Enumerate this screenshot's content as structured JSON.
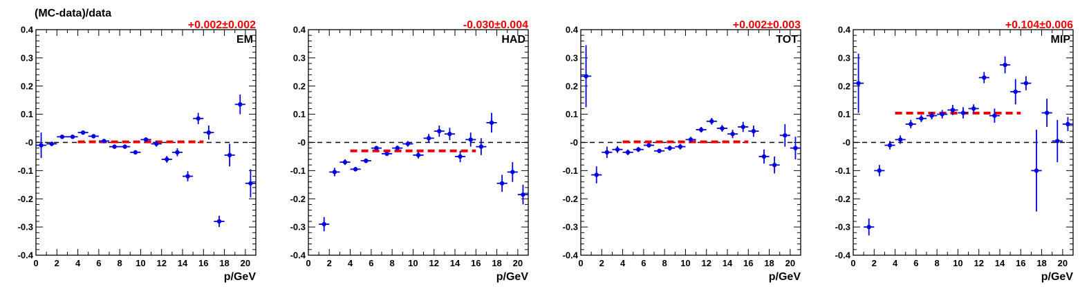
{
  "figure": {
    "ylabel": "(MC-data)/data",
    "xlabel": "p/GeV"
  },
  "colors": {
    "points": "#0000dd",
    "fit": "#ee0000",
    "fit_label": "#ee0000",
    "zero_line": "#000000",
    "axes": "#000000"
  },
  "chart_data": [
    {
      "type": "scatter",
      "panel_label": "EM",
      "fit_result": "+0.002±0.002",
      "xlim": [
        0,
        21
      ],
      "ylim": [
        -0.4,
        0.4
      ],
      "xticks": [
        0,
        2,
        4,
        6,
        8,
        10,
        12,
        14,
        16,
        18,
        20
      ],
      "yticks": [
        -0.4,
        -0.3,
        -0.2,
        -0.1,
        0,
        0.1,
        0.2,
        0.3,
        0.4
      ],
      "ytick_labels": [
        "-0.4",
        "-0.3",
        "-0.2",
        "-0.1",
        "-0",
        "0.1",
        "0.2",
        "0.3",
        "0.4"
      ],
      "fit_line": {
        "x_start": 4,
        "x_end": 16,
        "y": 0.002
      },
      "zero_line": 0,
      "points": [
        {
          "x": 0.5,
          "y": -0.01,
          "err": 0.045
        },
        {
          "x": 1.5,
          "y": -0.005,
          "err": 0.008
        },
        {
          "x": 2.5,
          "y": 0.02,
          "err": 0.006
        },
        {
          "x": 3.5,
          "y": 0.02,
          "err": 0.006
        },
        {
          "x": 4.5,
          "y": 0.035,
          "err": 0.006
        },
        {
          "x": 5.5,
          "y": 0.022,
          "err": 0.006
        },
        {
          "x": 6.5,
          "y": 0.005,
          "err": 0.006
        },
        {
          "x": 7.5,
          "y": -0.015,
          "err": 0.006
        },
        {
          "x": 8.5,
          "y": -0.015,
          "err": 0.006
        },
        {
          "x": 9.5,
          "y": -0.035,
          "err": 0.007
        },
        {
          "x": 10.5,
          "y": 0.01,
          "err": 0.008
        },
        {
          "x": 11.5,
          "y": -0.005,
          "err": 0.01
        },
        {
          "x": 12.5,
          "y": -0.06,
          "err": 0.012
        },
        {
          "x": 13.5,
          "y": -0.035,
          "err": 0.014
        },
        {
          "x": 14.5,
          "y": -0.12,
          "err": 0.018
        },
        {
          "x": 15.5,
          "y": 0.085,
          "err": 0.02
        },
        {
          "x": 16.5,
          "y": 0.035,
          "err": 0.025
        },
        {
          "x": 17.5,
          "y": -0.28,
          "err": 0.02
        },
        {
          "x": 18.5,
          "y": -0.045,
          "err": 0.04
        },
        {
          "x": 19.5,
          "y": 0.135,
          "err": 0.035
        },
        {
          "x": 20.5,
          "y": -0.145,
          "err": 0.05
        }
      ]
    },
    {
      "type": "scatter",
      "panel_label": "HAD",
      "fit_result": "-0.030±0.004",
      "xlim": [
        0,
        21
      ],
      "ylim": [
        -0.4,
        0.4
      ],
      "xticks": [
        0,
        2,
        4,
        6,
        8,
        10,
        12,
        14,
        16,
        18,
        20
      ],
      "yticks": [
        -0.4,
        -0.3,
        -0.2,
        -0.1,
        0,
        0.1,
        0.2,
        0.3,
        0.4
      ],
      "ytick_labels": [
        "-0.4",
        "-0.3",
        "-0.2",
        "-0.1",
        "-0",
        "0.1",
        "0.2",
        "0.3",
        "0.4"
      ],
      "fit_line": {
        "x_start": 4,
        "x_end": 16,
        "y": -0.03
      },
      "zero_line": 0,
      "points": [
        {
          "x": 1.5,
          "y": -0.29,
          "err": 0.025
        },
        {
          "x": 2.5,
          "y": -0.105,
          "err": 0.015
        },
        {
          "x": 3.5,
          "y": -0.07,
          "err": 0.01
        },
        {
          "x": 4.5,
          "y": -0.095,
          "err": 0.008
        },
        {
          "x": 5.5,
          "y": -0.065,
          "err": 0.008
        },
        {
          "x": 6.5,
          "y": -0.02,
          "err": 0.008
        },
        {
          "x": 7.5,
          "y": -0.04,
          "err": 0.008
        },
        {
          "x": 8.5,
          "y": -0.02,
          "err": 0.009
        },
        {
          "x": 9.5,
          "y": -0.005,
          "err": 0.01
        },
        {
          "x": 10.5,
          "y": -0.045,
          "err": 0.012
        },
        {
          "x": 11.5,
          "y": 0.015,
          "err": 0.015
        },
        {
          "x": 12.5,
          "y": 0.04,
          "err": 0.02
        },
        {
          "x": 13.5,
          "y": 0.03,
          "err": 0.022
        },
        {
          "x": 14.5,
          "y": -0.05,
          "err": 0.02
        },
        {
          "x": 15.5,
          "y": 0.01,
          "err": 0.025
        },
        {
          "x": 16.5,
          "y": -0.015,
          "err": 0.03
        },
        {
          "x": 17.5,
          "y": 0.07,
          "err": 0.035
        },
        {
          "x": 18.5,
          "y": -0.145,
          "err": 0.03
        },
        {
          "x": 19.5,
          "y": -0.105,
          "err": 0.035
        },
        {
          "x": 20.5,
          "y": -0.185,
          "err": 0.035
        }
      ]
    },
    {
      "type": "scatter",
      "panel_label": "TOT",
      "fit_result": "+0.002±0.003",
      "xlim": [
        0,
        21
      ],
      "ylim": [
        -0.4,
        0.4
      ],
      "xticks": [
        0,
        2,
        4,
        6,
        8,
        10,
        12,
        14,
        16,
        18,
        20
      ],
      "yticks": [
        -0.4,
        -0.3,
        -0.2,
        -0.1,
        0,
        0.1,
        0.2,
        0.3,
        0.4
      ],
      "ytick_labels": [
        "-0.4",
        "-0.3",
        "-0.2",
        "-0.1",
        "-0",
        "0.1",
        "0.2",
        "0.3",
        "0.4"
      ],
      "fit_line": {
        "x_start": 4,
        "x_end": 16,
        "y": 0.002
      },
      "zero_line": 0,
      "points": [
        {
          "x": 0.5,
          "y": 0.235,
          "err": 0.11
        },
        {
          "x": 1.5,
          "y": -0.115,
          "err": 0.03
        },
        {
          "x": 2.5,
          "y": -0.035,
          "err": 0.02
        },
        {
          "x": 3.5,
          "y": -0.025,
          "err": 0.012
        },
        {
          "x": 4.5,
          "y": -0.035,
          "err": 0.01
        },
        {
          "x": 5.5,
          "y": -0.025,
          "err": 0.009
        },
        {
          "x": 6.5,
          "y": -0.01,
          "err": 0.008
        },
        {
          "x": 7.5,
          "y": -0.03,
          "err": 0.008
        },
        {
          "x": 8.5,
          "y": -0.02,
          "err": 0.009
        },
        {
          "x": 9.5,
          "y": -0.015,
          "err": 0.01
        },
        {
          "x": 10.5,
          "y": 0.01,
          "err": 0.01
        },
        {
          "x": 11.5,
          "y": 0.045,
          "err": 0.01
        },
        {
          "x": 12.5,
          "y": 0.075,
          "err": 0.012
        },
        {
          "x": 13.5,
          "y": 0.05,
          "err": 0.012
        },
        {
          "x": 14.5,
          "y": 0.03,
          "err": 0.015
        },
        {
          "x": 15.5,
          "y": 0.055,
          "err": 0.018
        },
        {
          "x": 16.5,
          "y": 0.04,
          "err": 0.02
        },
        {
          "x": 17.5,
          "y": -0.05,
          "err": 0.025
        },
        {
          "x": 18.5,
          "y": -0.08,
          "err": 0.03
        },
        {
          "x": 19.5,
          "y": 0.025,
          "err": 0.04
        },
        {
          "x": 20.5,
          "y": -0.02,
          "err": 0.04
        }
      ]
    },
    {
      "type": "scatter",
      "panel_label": "MIP",
      "fit_result": "+0.104±0.006",
      "xlim": [
        0,
        21
      ],
      "ylim": [
        -0.4,
        0.4
      ],
      "xticks": [
        0,
        2,
        4,
        6,
        8,
        10,
        12,
        14,
        16,
        18,
        20
      ],
      "yticks": [
        -0.4,
        -0.3,
        -0.2,
        -0.1,
        0,
        0.1,
        0.2,
        0.3,
        0.4
      ],
      "ytick_labels": [
        "-0.4",
        "-0.3",
        "-0.2",
        "-0.1",
        "-0",
        "0.1",
        "0.2",
        "0.3",
        "0.4"
      ],
      "fit_line": {
        "x_start": 4,
        "x_end": 16,
        "y": 0.104
      },
      "zero_line": 0,
      "points": [
        {
          "x": 0.5,
          "y": 0.21,
          "err": 0.105
        },
        {
          "x": 1.5,
          "y": -0.3,
          "err": 0.03
        },
        {
          "x": 2.5,
          "y": -0.1,
          "err": 0.02
        },
        {
          "x": 3.5,
          "y": -0.01,
          "err": 0.015
        },
        {
          "x": 4.5,
          "y": 0.01,
          "err": 0.015
        },
        {
          "x": 5.5,
          "y": 0.065,
          "err": 0.015
        },
        {
          "x": 6.5,
          "y": 0.085,
          "err": 0.013
        },
        {
          "x": 7.5,
          "y": 0.095,
          "err": 0.013
        },
        {
          "x": 8.5,
          "y": 0.1,
          "err": 0.015
        },
        {
          "x": 9.5,
          "y": 0.115,
          "err": 0.018
        },
        {
          "x": 10.5,
          "y": 0.105,
          "err": 0.02
        },
        {
          "x": 11.5,
          "y": 0.12,
          "err": 0.015
        },
        {
          "x": 12.5,
          "y": 0.23,
          "err": 0.02
        },
        {
          "x": 13.5,
          "y": 0.095,
          "err": 0.025
        },
        {
          "x": 14.5,
          "y": 0.275,
          "err": 0.03
        },
        {
          "x": 15.5,
          "y": 0.18,
          "err": 0.045
        },
        {
          "x": 16.5,
          "y": 0.21,
          "err": 0.025
        },
        {
          "x": 17.5,
          "y": -0.1,
          "err": 0.145
        },
        {
          "x": 18.5,
          "y": 0.105,
          "err": 0.05
        },
        {
          "x": 19.5,
          "y": 0.005,
          "err": 0.075
        },
        {
          "x": 20.5,
          "y": 0.065,
          "err": 0.025
        }
      ]
    }
  ]
}
